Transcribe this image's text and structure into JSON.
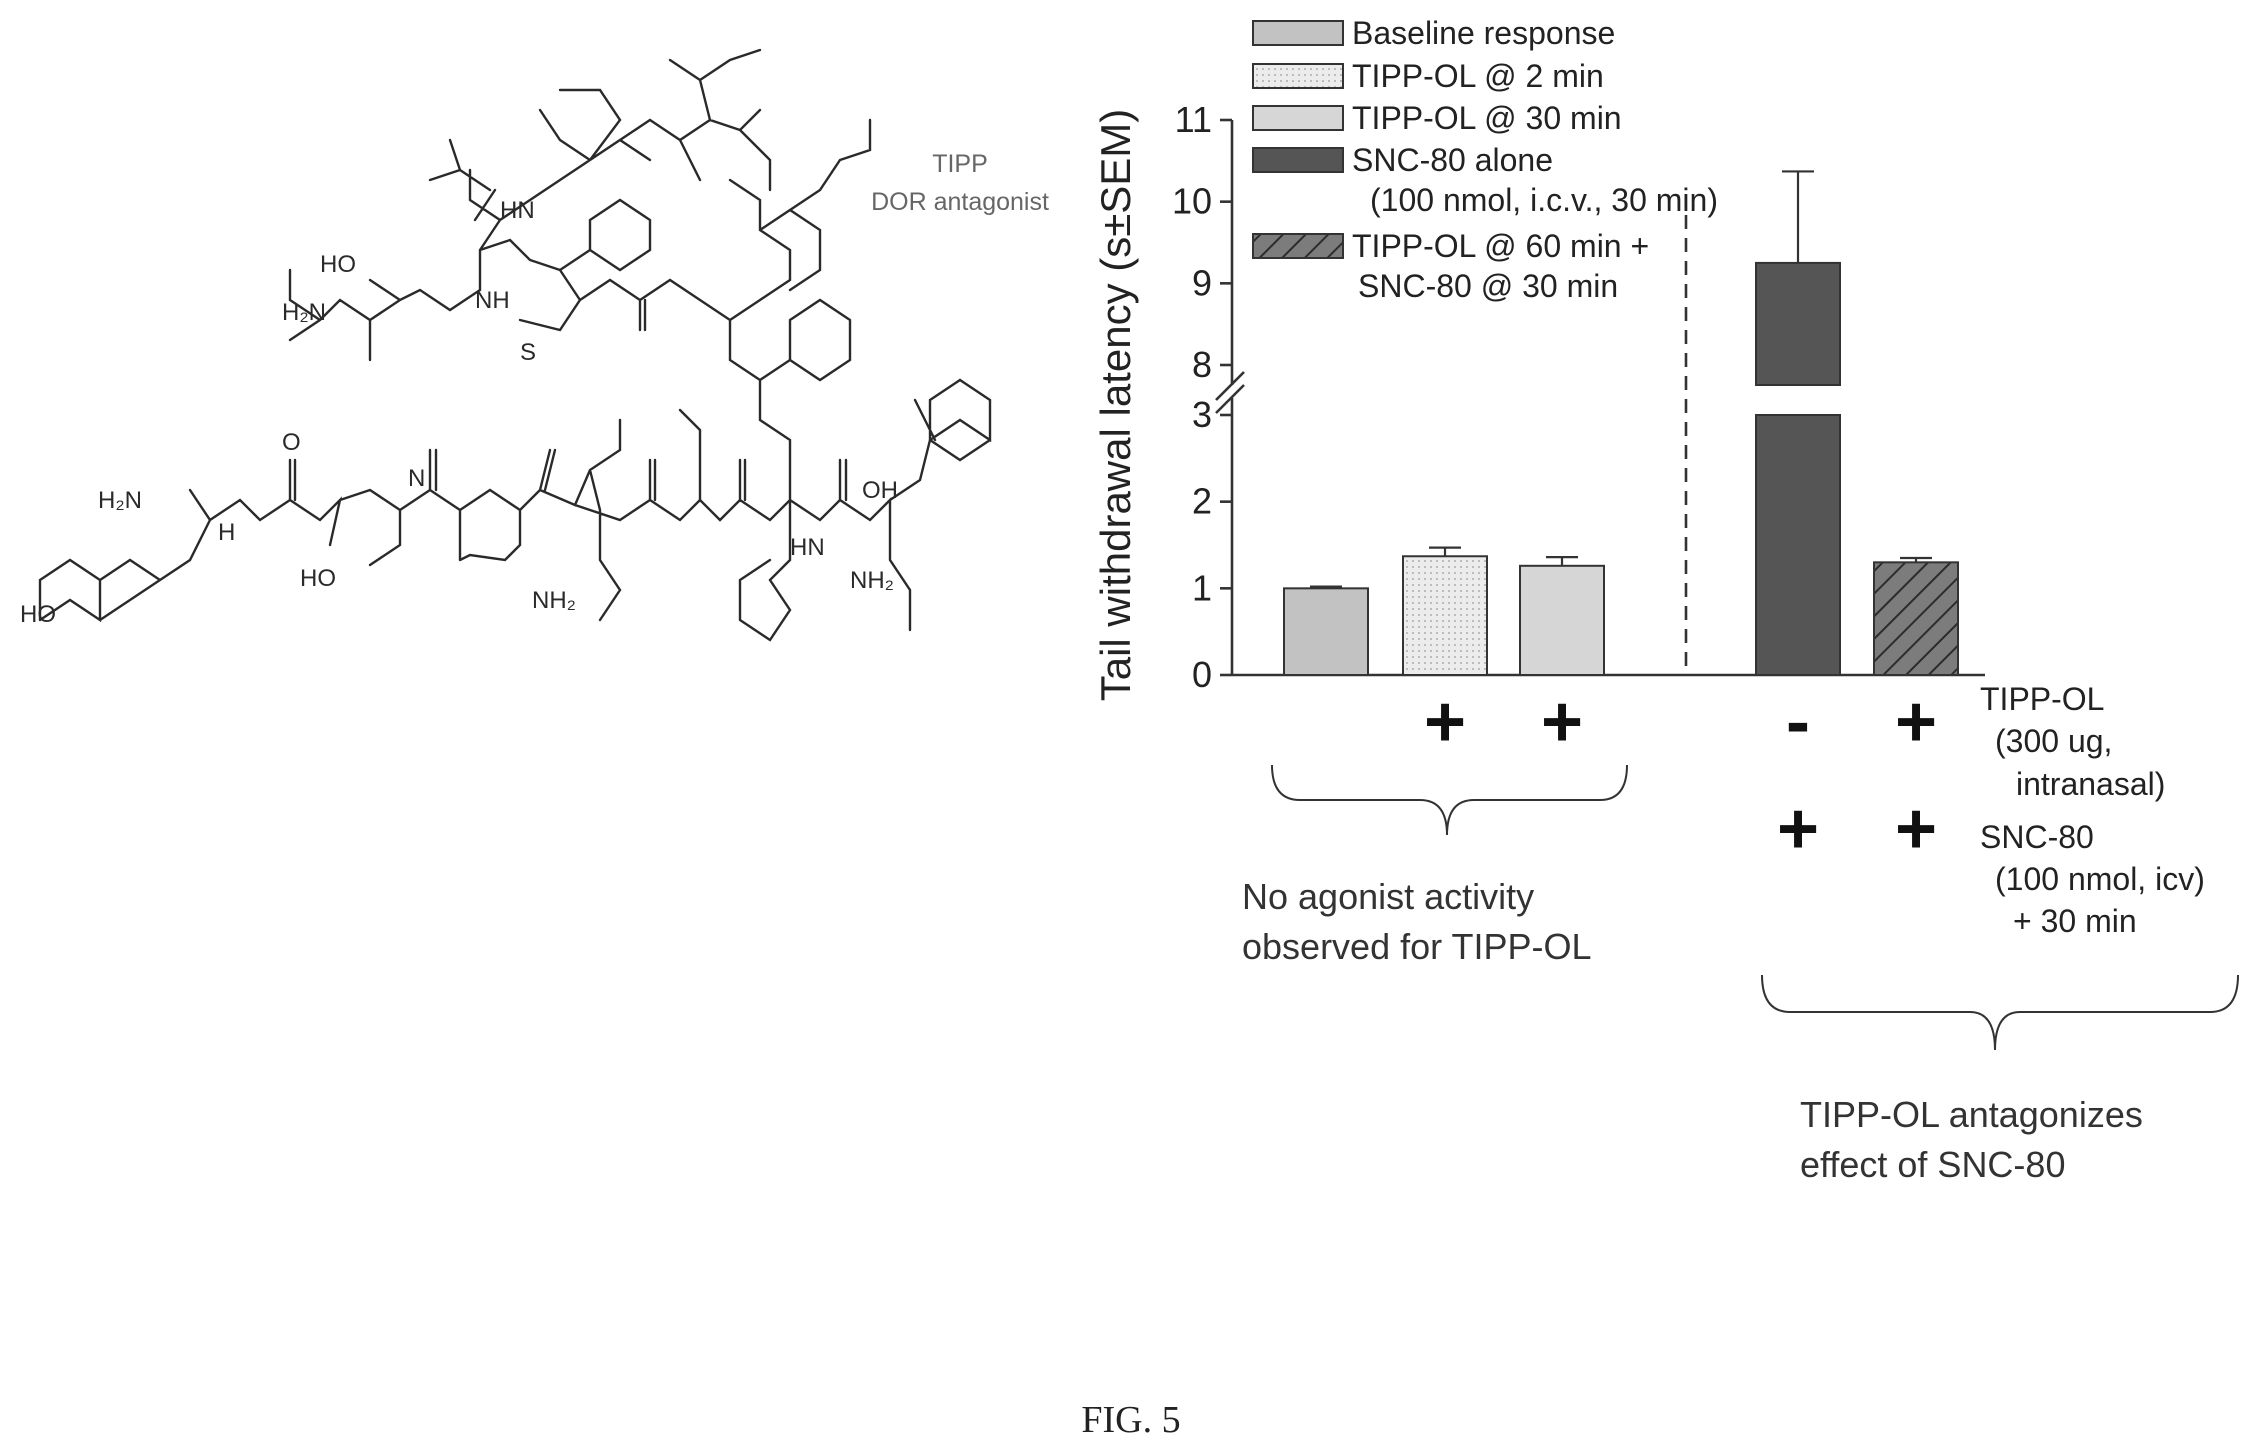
{
  "structure": {
    "name_lines": [
      "TIPP",
      "DOR antagonist"
    ],
    "atom_labels": [
      {
        "text": "HO"
      },
      {
        "text": "H₂N"
      },
      {
        "text": "O"
      },
      {
        "text": "N"
      },
      {
        "text": "H"
      },
      {
        "text": "HN"
      },
      {
        "text": "NH"
      },
      {
        "text": "S"
      },
      {
        "text": "H₂N"
      },
      {
        "text": "HO"
      },
      {
        "text": "NH₂"
      },
      {
        "text": "NH₂"
      },
      {
        "text": "HN"
      },
      {
        "text": "OH"
      },
      {
        "text": "HO"
      }
    ]
  },
  "colors": {
    "baseline": "#c2c2c2",
    "tipp2": "#ececec",
    "tipp30": "#d6d6d6",
    "snc": "#555555",
    "combo": "#7c7c7c",
    "axis": "#333333"
  },
  "chart_data": {
    "type": "bar",
    "title": "",
    "xlabel": "",
    "ylabel": "Tail withdrawal latency (s±SEM)",
    "y_broken_axis": true,
    "ylim_lower": [
      0,
      3
    ],
    "ylim_upper": [
      8,
      11
    ],
    "yticks_lower": [
      0,
      1,
      2,
      3
    ],
    "yticks_upper": [
      8,
      9,
      10,
      11
    ],
    "series": [
      {
        "name": "Baseline response",
        "value": 1.0,
        "sem": 0.02
      },
      {
        "name": "TIPP-OL @ 2 min",
        "value": 1.37,
        "sem": 0.1
      },
      {
        "name": "TIPP-OL @ 30 min",
        "value": 1.26,
        "sem": 0.1
      },
      {
        "name": "SNC-80 alone (100 nmol, i.c.v., 30 min)",
        "value": 9.25,
        "sem": 1.12
      },
      {
        "name": "TIPP-OL @ 60 min + SNC-80 @ 30 min",
        "value": 1.3,
        "sem": 0.05
      }
    ],
    "legend": [
      {
        "lines": [
          "Baseline response"
        ],
        "fill": "baseline"
      },
      {
        "lines": [
          "TIPP-OL @ 2 min"
        ],
        "fill": "tipp2"
      },
      {
        "lines": [
          "TIPP-OL @ 30 min"
        ],
        "fill": "tipp30"
      },
      {
        "lines": [
          "SNC-80 alone",
          "(100 nmol, i.c.v., 30 min)"
        ],
        "fill": "snc"
      },
      {
        "lines": [
          "TIPP-OL @ 60 min +",
          "SNC-80 @ 30 min"
        ],
        "fill": "combo"
      }
    ],
    "conditions": {
      "tipp_row": {
        "signs": [
          "+",
          "+",
          "-",
          "+"
        ],
        "label": [
          "TIPP-OL",
          "(300 ug,",
          "intranasal)"
        ]
      },
      "snc_row": {
        "signs": [
          "+",
          "+"
        ],
        "label": [
          "SNC-80",
          "(100 nmol, icv)",
          "+ 30 min"
        ]
      }
    },
    "annotations": [
      {
        "lines": [
          "No agonist activity",
          "observed for TIPP-OL"
        ]
      },
      {
        "lines": [
          "TIPP-OL antagonizes",
          "effect of SNC-80"
        ]
      }
    ]
  },
  "caption": "FIG. 5"
}
